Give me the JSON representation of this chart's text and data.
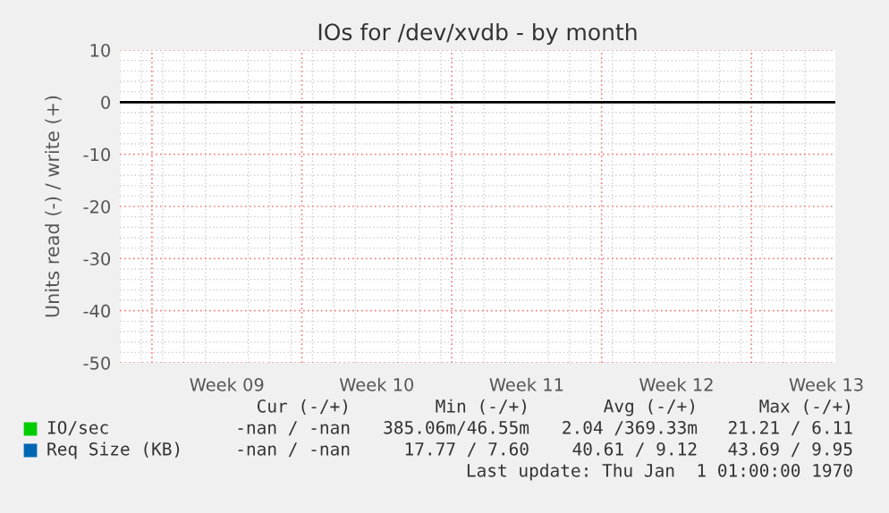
{
  "chart_data": {
    "type": "line",
    "title": "IOs for /dev/xvdb - by month",
    "ylabel": "Units read (-) / write (+)",
    "categories": [
      "Week 09",
      "Week 10",
      "Week 11",
      "Week 12",
      "Week 13"
    ],
    "series": [
      {
        "name": "IO/sec",
        "color": "#00cc00",
        "values": [
          null,
          null,
          null,
          null,
          null
        ]
      },
      {
        "name": "Req Size (KB)",
        "color": "#0066b3",
        "values": [
          null,
          null,
          null,
          null,
          null
        ]
      }
    ],
    "ylim": [
      -50,
      10
    ],
    "yticks": [
      -50,
      -40,
      -30,
      -20,
      -10,
      0,
      10
    ],
    "ref_lines": [
      {
        "axis": "y",
        "value": 0,
        "color": "#000000"
      }
    ],
    "grid": true,
    "legend": "bottom",
    "annotations": [
      "Cur (-/+)",
      "Min (-/+)",
      "Avg (-/+)",
      "Max (-/+)",
      "-nan / -nan",
      "385.06m/46.55m",
      "2.04 /369.33m",
      "21.21 / 6.11",
      "-nan / -nan",
      "17.77 / 7.60",
      "40.61 / 9.12",
      "43.69 / 9.95",
      "Last update: Thu Jan  1 01:00:00 1970"
    ]
  }
}
